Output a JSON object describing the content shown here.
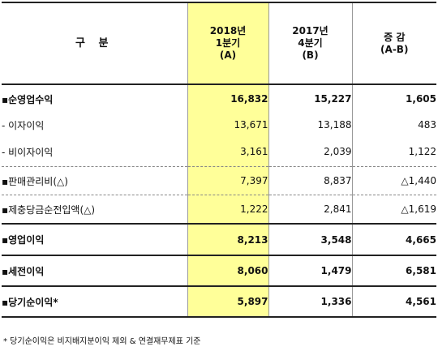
{
  "table": {
    "headers": [
      {
        "lines": [
          "구 분"
        ]
      },
      {
        "lines": [
          "2018년",
          "1분기",
          "(A)"
        ]
      },
      {
        "lines": [
          "2017년",
          "4분기",
          "(B)"
        ]
      },
      {
        "lines": [
          "증 감",
          "(A-B)"
        ]
      }
    ],
    "rows": [
      {
        "label": "▪순영업수익",
        "a": "16,832",
        "b": "15,227",
        "diff": "1,605"
      },
      {
        "label": "- 이자이익",
        "a": "13,671",
        "b": "13,188",
        "diff": "483"
      },
      {
        "label": "- 비이자이익",
        "a": "3,161",
        "b": "2,039",
        "diff": "1,122"
      },
      {
        "label": "▪판매관리비(△)",
        "a": "7,397",
        "b": "8,837",
        "diff": "△1,440"
      },
      {
        "label": "▪제충당금순전입액(△)",
        "a": "1,222",
        "b": "2,841",
        "diff": "△1,619"
      },
      {
        "label": "▪영업이익",
        "a": "8,213",
        "b": "3,548",
        "diff": "4,665"
      },
      {
        "label": "▪세전이익",
        "a": "8,060",
        "b": "1,479",
        "diff": "6,581"
      },
      {
        "label": "▪당기순이익*",
        "a": "5,897",
        "b": "1,336",
        "diff": "4,561"
      }
    ]
  },
  "footnote": "* 당기순이익은 비지배지분이익 제외 & 연결재무제표 기준",
  "colors": {
    "highlight": "#ffff99",
    "rule": "#222222"
  }
}
